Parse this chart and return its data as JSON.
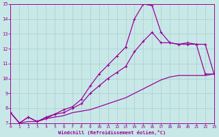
{
  "bg_color": "#c8e8e8",
  "line_color": "#990099",
  "xlim": [
    0,
    23
  ],
  "ylim": [
    7,
    15
  ],
  "xticks": [
    0,
    1,
    2,
    3,
    4,
    5,
    6,
    7,
    8,
    9,
    10,
    11,
    12,
    13,
    14,
    15,
    16,
    17,
    18,
    19,
    20,
    21,
    22,
    23
  ],
  "yticks": [
    7,
    8,
    9,
    10,
    11,
    12,
    13,
    14,
    15
  ],
  "xlabel": "Windchill (Refroidissement éolien,°C)",
  "grid_color": "#aacccc",
  "curve_upper_x": [
    0,
    1,
    2,
    3,
    4,
    5,
    6,
    7,
    8,
    9,
    10,
    11,
    12,
    13,
    14,
    15,
    16,
    17,
    18,
    19,
    20,
    21,
    22,
    23
  ],
  "curve_upper_y": [
    7.7,
    7.0,
    7.4,
    7.1,
    7.4,
    7.6,
    7.9,
    8.1,
    8.6,
    9.5,
    10.3,
    10.9,
    11.5,
    12.1,
    14.0,
    15.0,
    14.9,
    13.1,
    12.4,
    12.3,
    12.4,
    12.3,
    10.3,
    10.3
  ],
  "curve_mid_x": [
    0,
    1,
    2,
    3,
    4,
    5,
    6,
    7,
    8,
    9,
    10,
    11,
    12,
    13,
    14,
    15,
    16,
    17,
    18,
    19,
    20,
    21,
    22,
    23
  ],
  "curve_mid_y": [
    7.7,
    7.0,
    7.4,
    7.1,
    7.3,
    7.6,
    7.7,
    8.0,
    8.3,
    9.0,
    9.5,
    10.0,
    10.4,
    10.8,
    11.8,
    12.5,
    13.1,
    12.4,
    12.4,
    12.3,
    12.3,
    12.3,
    12.3,
    10.3
  ],
  "curve_low_x": [
    0,
    1,
    2,
    3,
    4,
    5,
    6,
    7,
    8,
    9,
    10,
    11,
    12,
    13,
    14,
    15,
    16,
    17,
    18,
    19,
    20,
    21,
    22,
    23
  ],
  "curve_low_y": [
    7.7,
    7.0,
    7.1,
    7.1,
    7.3,
    7.4,
    7.5,
    7.7,
    7.8,
    7.9,
    8.1,
    8.3,
    8.5,
    8.7,
    9.0,
    9.3,
    9.6,
    9.9,
    10.1,
    10.2,
    10.2,
    10.2,
    10.2,
    10.3
  ]
}
